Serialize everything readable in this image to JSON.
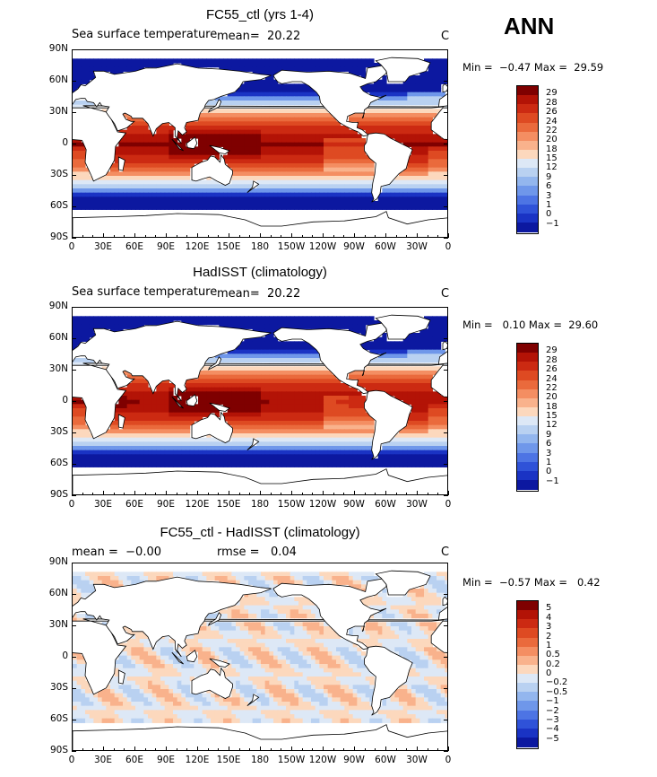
{
  "season": "ANN",
  "panels": [
    {
      "title": "FC55_ctl (yrs 1-4)",
      "subtitle_left": "Sea surface temperature",
      "subtitle_mid": "mean=  20.22",
      "subtitle_right": "C",
      "minmax": "Min =  −0.47 Max =  29.59",
      "field": "sst_model",
      "colorbar_labels": [
        "29",
        "28",
        "26",
        "24",
        "22",
        "20",
        "18",
        "15",
        "12",
        "9",
        "6",
        "3",
        "1",
        "0",
        "−1"
      ],
      "colorbar_colors": [
        "#7f0000",
        "#b31306",
        "#cc2a12",
        "#de4a22",
        "#ea6a3c",
        "#f48e62",
        "#f9b28c",
        "#fcd8bd",
        "#dde8f6",
        "#b9d1f1",
        "#93b6ee",
        "#6f97ea",
        "#4d74e4",
        "#2f52d8",
        "#1a33c4",
        "#0c18a0"
      ]
    },
    {
      "title": "HadISST (climatology)",
      "subtitle_left": "Sea surface temperature",
      "subtitle_mid": "mean=  20.22",
      "subtitle_right": "C",
      "minmax": "Min =   0.10 Max =  29.60",
      "field": "sst_obs",
      "colorbar_labels": [
        "29",
        "28",
        "26",
        "24",
        "22",
        "20",
        "18",
        "15",
        "12",
        "9",
        "6",
        "3",
        "1",
        "0",
        "−1"
      ],
      "colorbar_colors": [
        "#7f0000",
        "#b31306",
        "#cc2a12",
        "#de4a22",
        "#ea6a3c",
        "#f48e62",
        "#f9b28c",
        "#fcd8bd",
        "#dde8f6",
        "#b9d1f1",
        "#93b6ee",
        "#6f97ea",
        "#4d74e4",
        "#2f52d8",
        "#1a33c4",
        "#0c18a0"
      ]
    },
    {
      "title": "FC55_ctl - HadISST (climatology)",
      "subtitle_left": "mean =  −0.00",
      "subtitle_mid": "rmse =   0.04",
      "subtitle_right": "C",
      "minmax": "Min =  −0.57 Max =   0.42",
      "field": "sst_diff",
      "colorbar_labels": [
        "5",
        "4",
        "3",
        "2",
        "1",
        "0.5",
        "0.2",
        "0",
        "−0.2",
        "−0.5",
        "−1",
        "−2",
        "−3",
        "−4",
        "−5"
      ],
      "colorbar_colors": [
        "#7f0000",
        "#b31306",
        "#cc2a12",
        "#de4a22",
        "#ea6a3c",
        "#f48e62",
        "#f9b28c",
        "#fcd8bd",
        "#dde8f6",
        "#b9d1f1",
        "#93b6ee",
        "#6f97ea",
        "#4d74e4",
        "#2f52d8",
        "#1a33c4",
        "#0c18a0"
      ]
    }
  ],
  "chart_data": {
    "type": "heatmap",
    "xticks": [
      "0",
      "30E",
      "60E",
      "90E",
      "120E",
      "150E",
      "180",
      "150W",
      "120W",
      "90W",
      "60W",
      "30W",
      "0"
    ],
    "yticks": [
      "90N",
      "60N",
      "30N",
      "0",
      "30S",
      "60S",
      "90S"
    ],
    "xlim": [
      0,
      360
    ],
    "ylim": [
      -90,
      90
    ],
    "units": "C"
  }
}
